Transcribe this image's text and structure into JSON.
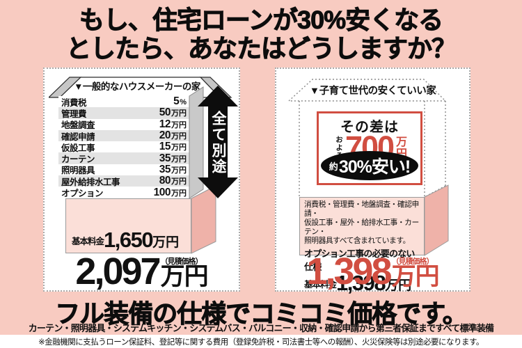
{
  "page": {
    "bg_color": "#F8CBC1",
    "accent_red": "#D14E41",
    "light_pink": "#FBDFD8",
    "side_pink": "#EFB2A9"
  },
  "headline": {
    "line1": "もし、住宅ローンが30%安くなる",
    "line2": "としたら、あなたはどうしますか？"
  },
  "left_panel": {
    "title": "▼一般的なハウスメーカーの家",
    "arrow_label": "全て別途",
    "cost_rows": [
      {
        "label": "消費税",
        "value": "5",
        "unit": "%"
      },
      {
        "label": "管理費",
        "value": "50",
        "unit": "万円"
      },
      {
        "label": "地盤調査",
        "value": "12",
        "unit": "万円"
      },
      {
        "label": "確認申請",
        "value": "20",
        "unit": "万円"
      },
      {
        "label": "仮設工事",
        "value": "15",
        "unit": "万円"
      },
      {
        "label": "カーテン",
        "value": "35",
        "unit": "万円"
      },
      {
        "label": "照明器具",
        "value": "35",
        "unit": "万円"
      },
      {
        "label": "屋外給排水工事",
        "value": "80",
        "unit": "万円"
      },
      {
        "label": "オプション",
        "value": "100",
        "unit": "万円"
      }
    ],
    "base_price_label": "基本料金",
    "base_price_value": "1,650",
    "base_price_unit": "万円",
    "total_value": "2,097",
    "total_unit": "万円",
    "total_note": "（見積価格）"
  },
  "right_panel": {
    "title": "▼子育て世代の安くていい家",
    "diff_box": {
      "heading": "その差は",
      "approx": "およそ",
      "amount": "700",
      "amount_unit": "万円",
      "badge_prefix": "約",
      "badge_text": "30%安い!"
    },
    "included_lines": [
      "消費税・管理費・地盤調査・確認申請・",
      "仮設工事・屋外・給排水工事・カーテン・",
      "照明器具すべて含まれています。"
    ],
    "included_bold": "オプション工事の必要のない仕様",
    "base_price_label": "基本料金",
    "base_price_value": "1,398",
    "base_price_unit": "万円",
    "total_value": "1,398",
    "total_unit": "万円",
    "total_note": "（見積価格）"
  },
  "footer": {
    "headline": "フル装備の仕様でコミコミ価格です。",
    "subline": "カーテン・照明器具・システムキッチン・システムバス・バルコニー・収納・確認申請から第三者保証まですべて標準装備",
    "disclaimer": "※金融機関に支払うローン保証料、登記等に関する費用（登録免許税・司法書士等への報酬）、火災保険等は別途必要になります。"
  }
}
